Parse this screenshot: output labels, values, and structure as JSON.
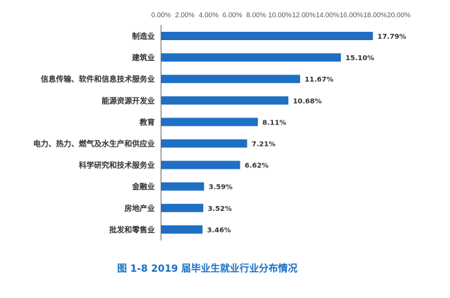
{
  "chart_data": {
    "type": "bar",
    "orientation": "horizontal",
    "title": "图 1-8   2019 届毕业生就业行业分布情况",
    "categories": [
      "制造业",
      "建筑业",
      "信息传输、软件和信息技术服务业",
      "能源资源开发业",
      "教育",
      "电力、热力、燃气及水生产和供应业",
      "科学研究和技术服务业",
      "金融业",
      "房地产业",
      "批发和零售业"
    ],
    "values": [
      17.79,
      15.1,
      11.67,
      10.68,
      8.11,
      7.21,
      6.62,
      3.59,
      3.52,
      3.46
    ],
    "value_labels": [
      "17.79%",
      "15.10%",
      "11.67%",
      "10.68%",
      "8.11%",
      "7.21%",
      "6.62%",
      "3.59%",
      "3.52%",
      "3.46%"
    ],
    "xlim": [
      0,
      20
    ],
    "x_ticks": [
      "0.00%",
      "2.00%",
      "4.00%",
      "6.00%",
      "8.00%",
      "10.00%",
      "12.00%",
      "14.00%",
      "16.00%",
      "18.00%",
      "20.00%"
    ],
    "x_axis_position": "top",
    "grid": false,
    "legend": "none",
    "bar_color": "#1f6fc5",
    "title_color": "#1a6fc4"
  }
}
